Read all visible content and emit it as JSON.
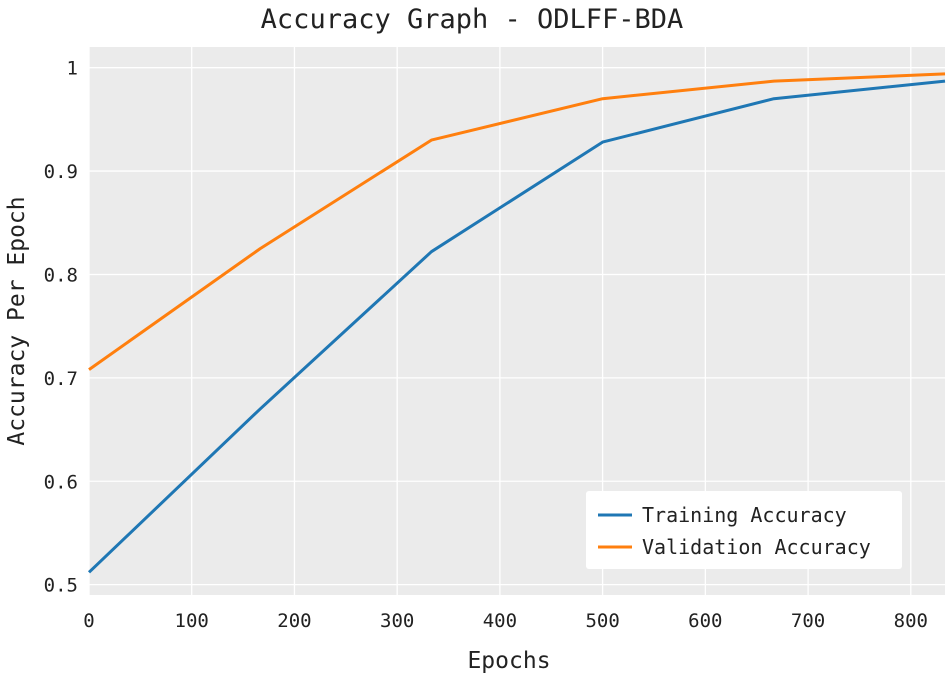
{
  "chart_data": {
    "type": "line",
    "title": "Accuracy Graph - ODLFF-BDA",
    "xlabel": "Epochs",
    "ylabel": "Accuracy Per Epoch",
    "x": [
      0,
      166.7,
      333.3,
      500,
      666.7,
      833.3
    ],
    "series": [
      {
        "name": "Training Accuracy",
        "color": "#1f77b4",
        "values": [
          0.512,
          0.67,
          0.822,
          0.928,
          0.97,
          0.987
        ]
      },
      {
        "name": "Validation Accuracy",
        "color": "#ff7f0e",
        "values": [
          0.708,
          0.825,
          0.93,
          0.97,
          0.987,
          0.994
        ]
      }
    ],
    "xlim": [
      0,
      833.3
    ],
    "ylim": [
      0.49,
      1.02
    ],
    "xticks": [
      0,
      100,
      200,
      300,
      400,
      500,
      600,
      700,
      800
    ],
    "yticks": [
      0.5,
      0.6,
      0.7,
      0.8,
      0.9,
      1
    ],
    "xtick_labels": [
      "0",
      "100",
      "200",
      "300",
      "400",
      "500",
      "600",
      "700",
      "800"
    ],
    "ytick_labels": [
      "0.5",
      "0.6",
      "0.7",
      "0.8",
      "0.9",
      "1"
    ],
    "grid": true,
    "legend_position": "lower-right",
    "background_color": "#ebebeb",
    "grid_color": "#ffffff"
  }
}
